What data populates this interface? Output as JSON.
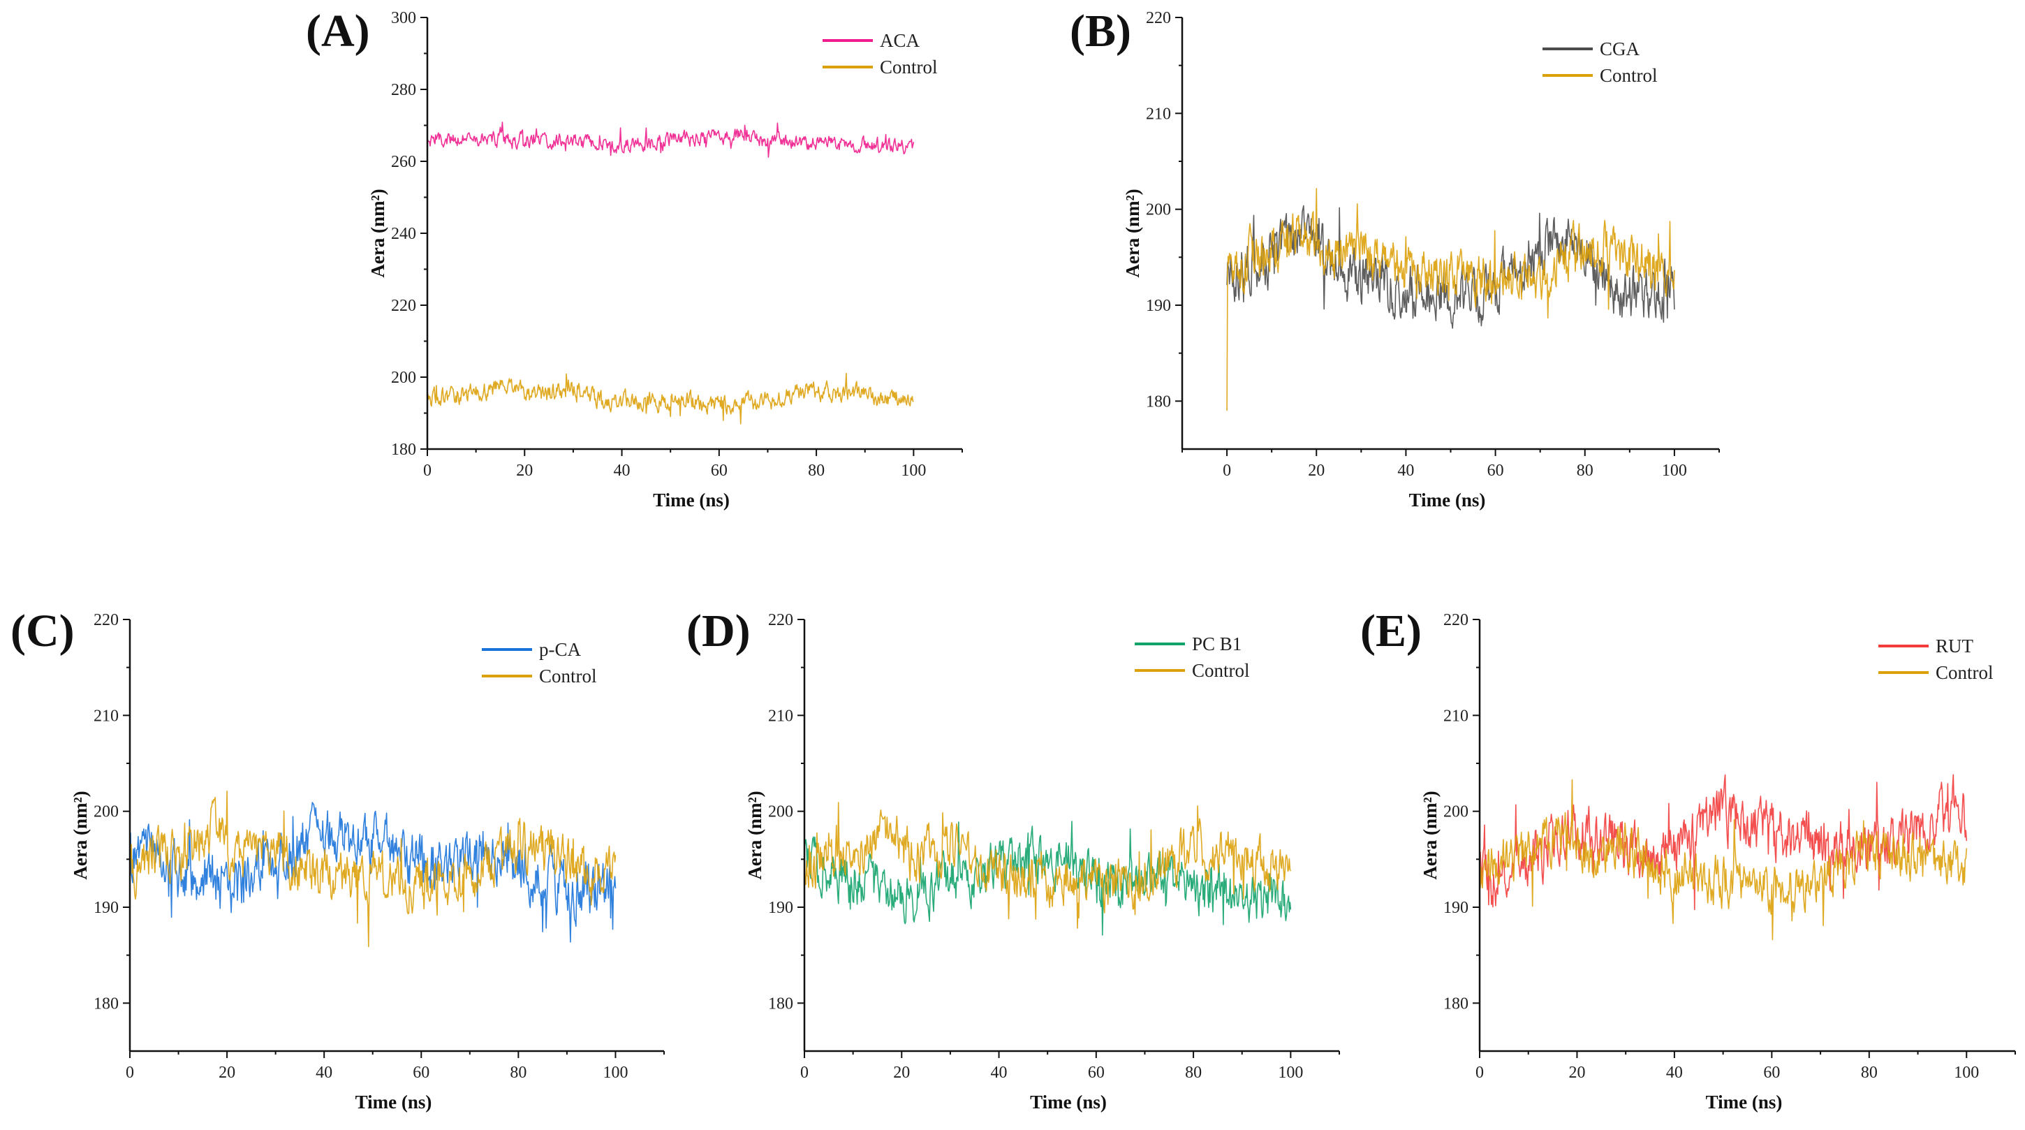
{
  "chart_data": [
    {
      "id": "A",
      "panel_label": "(A)",
      "type": "line",
      "xlabel": "Time (ns)",
      "ylabel": "Aera (nm²)",
      "xlim": [
        0,
        110
      ],
      "ylim": [
        180,
        300
      ],
      "xticks": [
        0,
        20,
        40,
        60,
        80,
        100
      ],
      "yticks": [
        180,
        200,
        220,
        240,
        260,
        280,
        300
      ],
      "legend_position": "top-right",
      "series": [
        {
          "name": "ACA",
          "color": "#ee1c8c",
          "x_range": [
            0,
            100
          ],
          "mean_points": [
            [
              0,
              266
            ],
            [
              10,
              266.5
            ],
            [
              20,
              266
            ],
            [
              30,
              265.5
            ],
            [
              40,
              264.5
            ],
            [
              50,
              266
            ],
            [
              60,
              267
            ],
            [
              65,
              267.5
            ],
            [
              70,
              265.5
            ],
            [
              80,
              265
            ],
            [
              90,
              264.5
            ],
            [
              100,
              264
            ]
          ],
          "noise": 1.6
        },
        {
          "name": "Control",
          "color": "#dba00a",
          "x_range": [
            0,
            100
          ],
          "mean_points": [
            [
              0,
              194
            ],
            [
              5,
              195
            ],
            [
              10,
              195.5
            ],
            [
              17,
              198
            ],
            [
              22,
              195
            ],
            [
              30,
              196.5
            ],
            [
              35,
              194
            ],
            [
              45,
              193
            ],
            [
              55,
              193
            ],
            [
              60,
              192
            ],
            [
              65,
              192.5
            ],
            [
              70,
              193
            ],
            [
              75,
              195
            ],
            [
              80,
              196
            ],
            [
              85,
              196
            ],
            [
              90,
              195
            ],
            [
              95,
              194
            ],
            [
              100,
              194
            ]
          ],
          "noise": 2.0
        }
      ]
    },
    {
      "id": "B",
      "panel_label": "(B)",
      "type": "line",
      "xlabel": "Time (ns)",
      "ylabel": "Aera (nm²)",
      "xlim": [
        -10,
        110
      ],
      "ylim": [
        175,
        220
      ],
      "xticks": [
        0,
        20,
        40,
        60,
        80,
        100
      ],
      "yticks": [
        180,
        190,
        200,
        210,
        220
      ],
      "legend_position": "top-right",
      "series": [
        {
          "name": "CGA",
          "color": "#4d4d4d",
          "x_range": [
            0,
            100
          ],
          "mean_points": [
            [
              0,
              193.5
            ],
            [
              5,
              194
            ],
            [
              10,
              195
            ],
            [
              17,
              197
            ],
            [
              22,
              195.5
            ],
            [
              28,
              193.5
            ],
            [
              35,
              192
            ],
            [
              42,
              191
            ],
            [
              50,
              191.5
            ],
            [
              55,
              190.5
            ],
            [
              60,
              192
            ],
            [
              65,
              193.5
            ],
            [
              70,
              195.5
            ],
            [
              75,
              196.5
            ],
            [
              80,
              195
            ],
            [
              88,
              191
            ],
            [
              95,
              191.5
            ],
            [
              100,
              191.5
            ]
          ],
          "noise": 2.2
        },
        {
          "name": "Control",
          "color": "#dba00a",
          "x_range": [
            0,
            100
          ],
          "mean_points": [
            [
              0,
              194
            ],
            [
              5,
              195
            ],
            [
              10,
              195.5
            ],
            [
              17,
              198
            ],
            [
              22,
              195
            ],
            [
              30,
              196.5
            ],
            [
              35,
              194
            ],
            [
              45,
              193
            ],
            [
              55,
              193
            ],
            [
              60,
              192
            ],
            [
              65,
              192.5
            ],
            [
              70,
              193
            ],
            [
              75,
              195
            ],
            [
              80,
              196
            ],
            [
              85,
              196
            ],
            [
              90,
              195
            ],
            [
              95,
              194
            ],
            [
              100,
              194
            ]
          ],
          "noise": 2.0,
          "initial_value": 179
        }
      ]
    },
    {
      "id": "C",
      "panel_label": "(C)",
      "type": "line",
      "xlabel": "Time (ns)",
      "ylabel": "Aera (nm²)",
      "xlim": [
        0,
        110
      ],
      "ylim": [
        175,
        220
      ],
      "xticks": [
        0,
        20,
        40,
        60,
        80,
        100
      ],
      "yticks": [
        180,
        190,
        200,
        210,
        220
      ],
      "legend_position": "top-right",
      "series": [
        {
          "name": "p-CA",
          "color": "#1a73d9",
          "x_range": [
            0,
            100
          ],
          "mean_points": [
            [
              0,
              195
            ],
            [
              3,
              197
            ],
            [
              8,
              194
            ],
            [
              15,
              193
            ],
            [
              22,
              192
            ],
            [
              28,
              194
            ],
            [
              35,
              196.5
            ],
            [
              42,
              198
            ],
            [
              50,
              196.5
            ],
            [
              58,
              195
            ],
            [
              65,
              194
            ],
            [
              72,
              196.5
            ],
            [
              78,
              195
            ],
            [
              85,
              193
            ],
            [
              92,
              192
            ],
            [
              100,
              192
            ]
          ],
          "noise": 2.2
        },
        {
          "name": "Control",
          "color": "#dba00a",
          "x_range": [
            0,
            100
          ],
          "mean_points": [
            [
              0,
              194
            ],
            [
              5,
              195
            ],
            [
              10,
              195.5
            ],
            [
              17,
              198
            ],
            [
              22,
              195
            ],
            [
              30,
              196.5
            ],
            [
              35,
              194
            ],
            [
              45,
              193
            ],
            [
              55,
              193
            ],
            [
              60,
              192
            ],
            [
              65,
              192.5
            ],
            [
              70,
              193
            ],
            [
              75,
              195
            ],
            [
              80,
              196
            ],
            [
              85,
              196
            ],
            [
              90,
              195
            ],
            [
              95,
              194
            ],
            [
              100,
              194
            ]
          ],
          "noise": 2.0
        }
      ]
    },
    {
      "id": "D",
      "panel_label": "(D)",
      "type": "line",
      "xlabel": "Time (ns)",
      "ylabel": "Aera (nm²)",
      "xlim": [
        0,
        110
      ],
      "ylim": [
        175,
        220
      ],
      "xticks": [
        0,
        20,
        40,
        60,
        80,
        100
      ],
      "yticks": [
        180,
        190,
        200,
        210,
        220
      ],
      "legend_position": "top-right",
      "series": [
        {
          "name": "PC B1",
          "color": "#12a36a",
          "x_range": [
            0,
            100
          ],
          "mean_points": [
            [
              0,
              196
            ],
            [
              3,
              195
            ],
            [
              8,
              192.5
            ],
            [
              15,
              192
            ],
            [
              22,
              191
            ],
            [
              30,
              193
            ],
            [
              38,
              194
            ],
            [
              45,
              195
            ],
            [
              52,
              195
            ],
            [
              58,
              193
            ],
            [
              65,
              191.5
            ],
            [
              72,
              193
            ],
            [
              80,
              192
            ],
            [
              88,
              191
            ],
            [
              95,
              190.5
            ],
            [
              100,
              191
            ]
          ],
          "noise": 2.0
        },
        {
          "name": "Control",
          "color": "#dba00a",
          "x_range": [
            0,
            100
          ],
          "mean_points": [
            [
              0,
              194
            ],
            [
              5,
              195
            ],
            [
              10,
              195.5
            ],
            [
              17,
              198
            ],
            [
              22,
              195
            ],
            [
              30,
              196.5
            ],
            [
              35,
              194
            ],
            [
              45,
              193
            ],
            [
              55,
              193
            ],
            [
              60,
              192
            ],
            [
              65,
              192.5
            ],
            [
              70,
              193
            ],
            [
              75,
              195
            ],
            [
              80,
              196
            ],
            [
              85,
              196
            ],
            [
              90,
              195
            ],
            [
              95,
              194
            ],
            [
              100,
              194
            ]
          ],
          "noise": 2.0
        }
      ]
    },
    {
      "id": "E",
      "panel_label": "(E)",
      "type": "line",
      "xlabel": "Time (ns)",
      "ylabel": "Aera (nm²)",
      "xlim": [
        0,
        110
      ],
      "ylim": [
        175,
        220
      ],
      "xticks": [
        0,
        20,
        40,
        60,
        80,
        100
      ],
      "yticks": [
        180,
        190,
        200,
        210,
        220
      ],
      "legend_position": "top-right",
      "series": [
        {
          "name": "RUT",
          "color": "#f23c3c",
          "x_range": [
            0,
            100
          ],
          "mean_points": [
            [
              0,
              194
            ],
            [
              5,
              193
            ],
            [
              10,
              195
            ],
            [
              18,
              197.5
            ],
            [
              25,
              198
            ],
            [
              32,
              196
            ],
            [
              40,
              196
            ],
            [
              45,
              198
            ],
            [
              50,
              200
            ],
            [
              55,
              198.5
            ],
            [
              60,
              198
            ],
            [
              65,
              197.5
            ],
            [
              72,
              196
            ],
            [
              78,
              197
            ],
            [
              85,
              197
            ],
            [
              92,
              198
            ],
            [
              97,
              200.5
            ],
            [
              100,
              200
            ]
          ],
          "noise": 2.2
        },
        {
          "name": "Control",
          "color": "#dba00a",
          "x_range": [
            0,
            100
          ],
          "mean_points": [
            [
              0,
              194
            ],
            [
              5,
              195
            ],
            [
              10,
              195.5
            ],
            [
              17,
              198
            ],
            [
              22,
              195
            ],
            [
              30,
              196.5
            ],
            [
              35,
              194
            ],
            [
              45,
              193
            ],
            [
              55,
              193
            ],
            [
              60,
              192
            ],
            [
              65,
              192.5
            ],
            [
              70,
              193
            ],
            [
              75,
              195
            ],
            [
              80,
              196
            ],
            [
              85,
              196
            ],
            [
              90,
              195
            ],
            [
              95,
              194
            ],
            [
              100,
              194
            ]
          ],
          "noise": 2.0
        }
      ]
    }
  ]
}
